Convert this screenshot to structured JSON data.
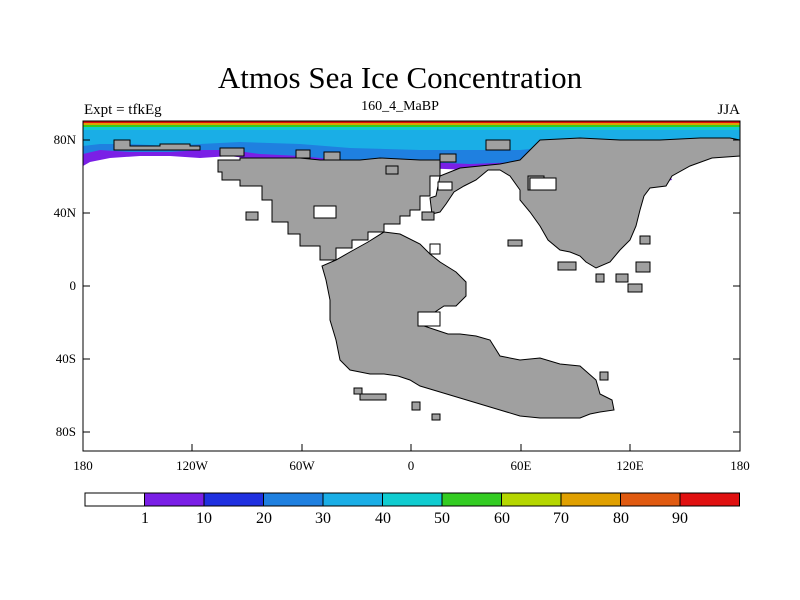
{
  "title": "Atmos Sea Ice Concentration",
  "left_string": "Expt = tfkEg",
  "center_string": "160_4_MaBP",
  "right_string": "JJA",
  "lat_ticks": [
    "80N",
    "40N",
    "0",
    "40S",
    "80S"
  ],
  "lon_ticks": [
    "180",
    "120W",
    "60W",
    "0",
    "60E",
    "120E",
    "180"
  ],
  "colorbar": {
    "labels": [
      "1",
      "10",
      "20",
      "30",
      "40",
      "50",
      "60",
      "70",
      "80",
      "90"
    ],
    "colors": [
      "#ffffff",
      "#7a1fe6",
      "#1f30e0",
      "#1f80e0",
      "#1aaee6",
      "#10ccd0",
      "#33cc22",
      "#b5d600",
      "#e0a000",
      "#e05a10",
      "#e01010"
    ]
  },
  "land_color": "#a0a0a0"
}
